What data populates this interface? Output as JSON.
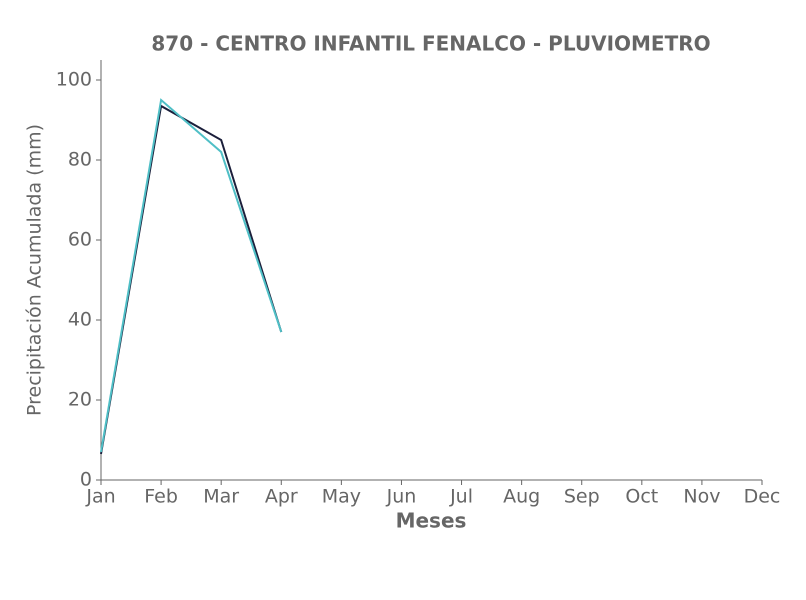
{
  "chart_data": {
    "type": "line",
    "title": "870 - CENTRO INFANTIL FENALCO - PLUVIOMETRO",
    "x_label": "Meses",
    "y_label": "Precipitación Acumulada (mm)",
    "categories": [
      "Jan",
      "Feb",
      "Mar",
      "Apr",
      "May",
      "Jun",
      "Jul",
      "Aug",
      "Sep",
      "Oct",
      "Nov",
      "Dec"
    ],
    "series": [
      {
        "color": "#1b1f3b",
        "values": [
          6.5,
          93.5,
          85,
          37,
          null,
          null,
          null,
          null,
          null,
          null,
          null,
          null
        ]
      },
      {
        "color": "#4fbfc6",
        "values": [
          7,
          95,
          82,
          37,
          null,
          null,
          null,
          null,
          null,
          null,
          null,
          null
        ]
      }
    ],
    "ylim": [
      0,
      105
    ],
    "yticks": [
      0,
      20,
      40,
      60,
      80,
      100
    ],
    "grid": false
  }
}
